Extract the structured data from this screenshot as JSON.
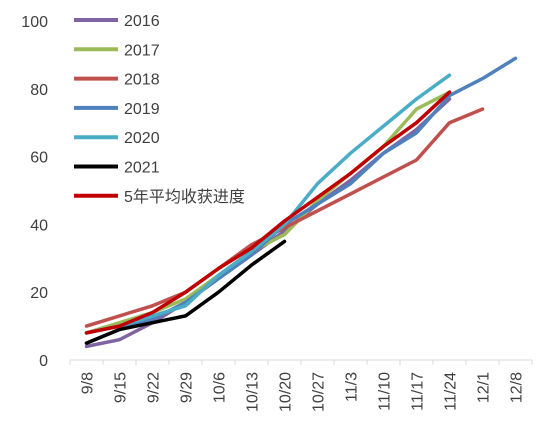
{
  "chart_data": {
    "type": "line",
    "title": "",
    "xlabel": "",
    "ylabel": "",
    "categories": [
      "9/8",
      "9/15",
      "9/22",
      "9/29",
      "10/6",
      "10/13",
      "10/20",
      "10/27",
      "11/3",
      "11/10",
      "11/17",
      "11/24",
      "12/1",
      "12/8"
    ],
    "ylim": [
      0,
      100
    ],
    "yticks": [
      0,
      20,
      40,
      60,
      80,
      100
    ],
    "grid": false,
    "legend_position": "top-left",
    "series": [
      {
        "name": "2016",
        "color": "#8064A2",
        "values": [
          4,
          6,
          11,
          17,
          24,
          31,
          38,
          46,
          53,
          61,
          68,
          77,
          null,
          null
        ]
      },
      {
        "name": "2017",
        "color": "#9BBB59",
        "values": [
          8,
          11,
          14,
          18,
          25,
          32,
          37,
          47,
          55,
          63,
          74,
          79,
          null,
          null
        ]
      },
      {
        "name": "2018",
        "color": "#C0504D",
        "values": [
          10,
          13,
          16,
          20,
          27,
          34,
          39,
          44,
          49,
          54,
          59,
          70,
          74,
          null
        ]
      },
      {
        "name": "2019",
        "color": "#4F81BD",
        "values": [
          5,
          9,
          12,
          17,
          24,
          31,
          40,
          46,
          52,
          61,
          67,
          78,
          83,
          89
        ]
      },
      {
        "name": "2020",
        "color": "#4BACC6",
        "values": [
          8,
          10,
          13,
          16,
          25,
          32,
          40,
          52,
          61,
          69,
          77,
          84,
          null,
          null
        ]
      },
      {
        "name": "2021",
        "color": "#000000",
        "values": [
          5,
          9,
          11,
          13,
          20,
          28,
          35,
          null,
          null,
          null,
          null,
          null,
          null,
          null
        ]
      },
      {
        "name": "5年平均收获进度",
        "color": "#C00000",
        "values": [
          8,
          10,
          14,
          20,
          27,
          33,
          41,
          48,
          55,
          63,
          70,
          79,
          null,
          null
        ]
      }
    ]
  }
}
